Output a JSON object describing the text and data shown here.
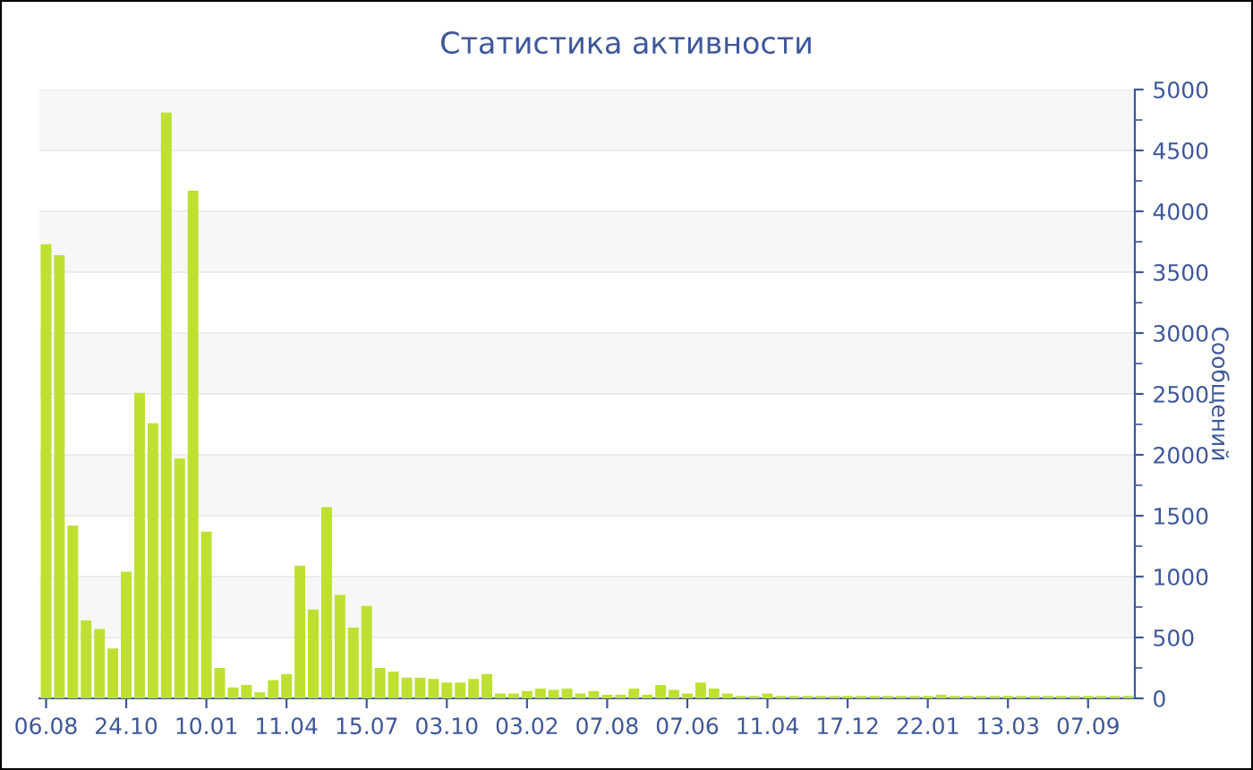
{
  "chart_data": {
    "type": "bar",
    "title": "Статистика активности",
    "ylabel": "Сообщений",
    "categories": [
      "06.08",
      null,
      null,
      null,
      null,
      null,
      "24.10",
      null,
      null,
      null,
      null,
      null,
      "10.01",
      null,
      null,
      null,
      null,
      null,
      "11.04",
      null,
      null,
      null,
      null,
      null,
      "15.07",
      null,
      null,
      null,
      null,
      null,
      "03.10",
      null,
      null,
      null,
      null,
      null,
      "03.02",
      null,
      null,
      null,
      null,
      null,
      "07.08",
      null,
      null,
      null,
      null,
      null,
      "07.06",
      null,
      null,
      null,
      null,
      null,
      "11.04",
      null,
      null,
      null,
      null,
      null,
      "17.12",
      null,
      null,
      null,
      null,
      null,
      "22.01",
      null,
      null,
      null,
      null,
      null,
      "13.03",
      null,
      null,
      null,
      null,
      null,
      "07.09",
      null,
      null,
      null
    ],
    "values": [
      3730,
      3640,
      1420,
      640,
      570,
      410,
      1040,
      2510,
      2260,
      4810,
      1970,
      4170,
      1370,
      250,
      90,
      110,
      50,
      150,
      200,
      1090,
      730,
      1570,
      850,
      580,
      760,
      250,
      220,
      170,
      170,
      160,
      130,
      130,
      160,
      200,
      40,
      40,
      60,
      80,
      70,
      80,
      40,
      60,
      30,
      30,
      80,
      30,
      110,
      70,
      40,
      130,
      80,
      40,
      20,
      20,
      40,
      20,
      20,
      20,
      20,
      20,
      20,
      20,
      20,
      20,
      20,
      20,
      20,
      30,
      20,
      20,
      20,
      20,
      20,
      20,
      20,
      20,
      20,
      20,
      20,
      20,
      20,
      20
    ],
    "color": "#bde031",
    "ylim": [
      0,
      5000
    ],
    "yticks": [
      0,
      500,
      1000,
      1500,
      2000,
      2500,
      3000,
      3500,
      4000,
      4500,
      5000
    ],
    "grid": "y"
  }
}
